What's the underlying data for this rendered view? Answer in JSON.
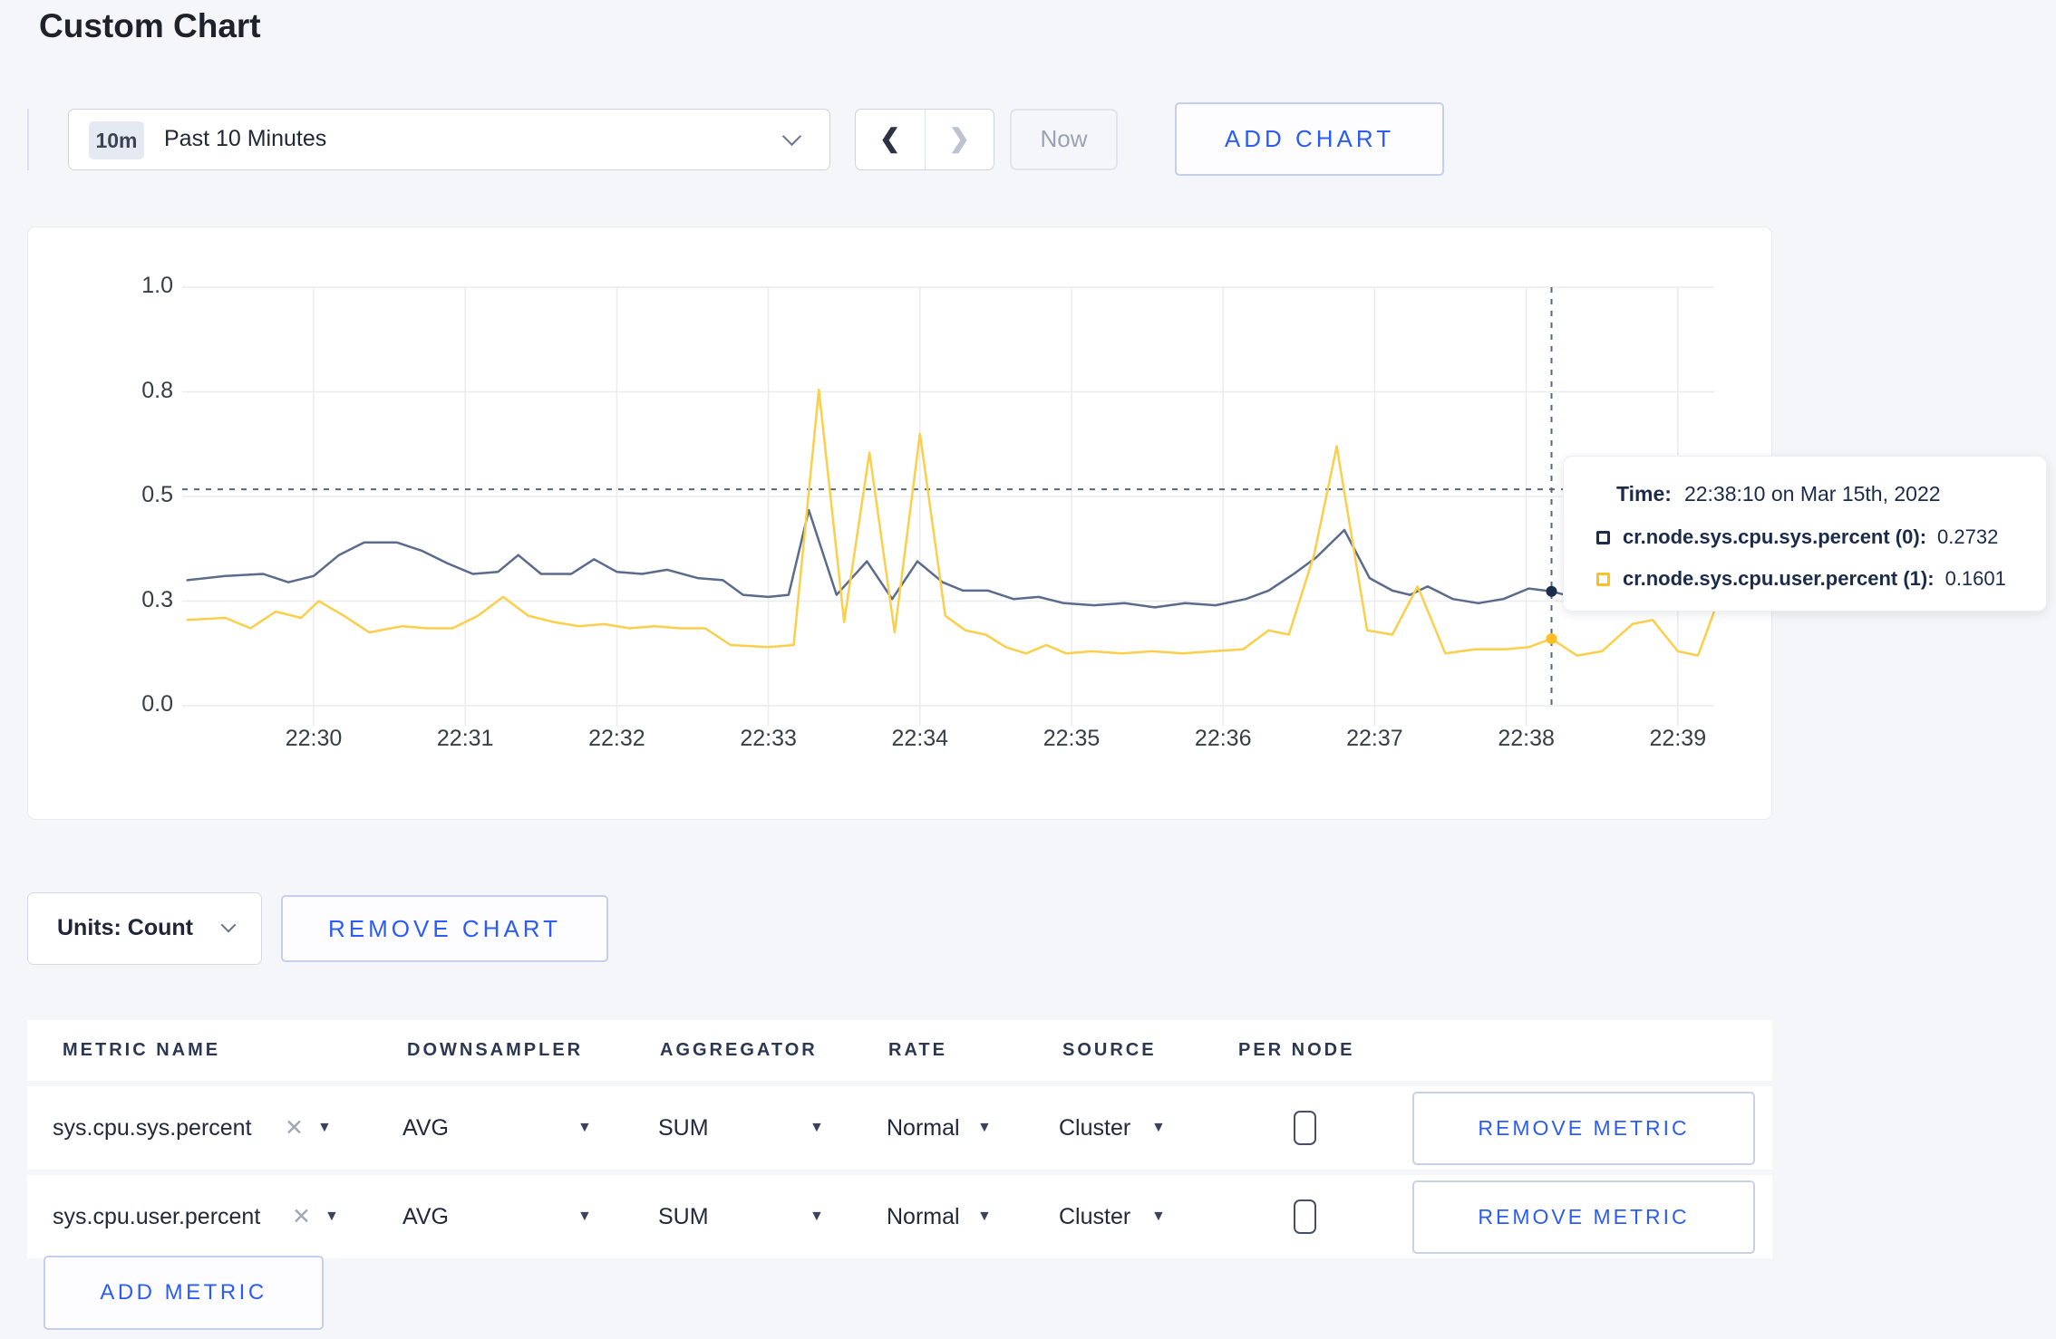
{
  "page": {
    "title": "Custom Chart"
  },
  "toolbar": {
    "time_window_badge": "10m",
    "time_window_label": "Past 10 Minutes",
    "prev_arrow": "❮",
    "next_arrow": "❯",
    "now_label": "Now",
    "add_chart_label": "ADD CHART"
  },
  "chart_controls": {
    "units_label": "Units: Count",
    "remove_chart_label": "REMOVE CHART"
  },
  "chart_data": {
    "type": "line",
    "title": "",
    "xlabel": "",
    "ylabel": "",
    "grid": true,
    "legend_position": "tooltip-only",
    "y_axis": {
      "tick_labels": [
        "0.0",
        "0.3",
        "0.5",
        "0.8",
        "1.0"
      ],
      "tick_values": [
        0,
        0.25,
        0.5,
        0.75,
        1.0
      ],
      "range": [
        0,
        1
      ]
    },
    "x_axis": {
      "tick_labels": [
        "22:30",
        "22:31",
        "22:32",
        "22:33",
        "22:34",
        "22:35",
        "22:36",
        "22:37",
        "22:38",
        "22:39"
      ],
      "tick_seconds": [
        60,
        120,
        180,
        240,
        300,
        360,
        420,
        480,
        540,
        600
      ]
    },
    "series": [
      {
        "name": "cr.node.sys.cpu.sys.percent",
        "color": "#5b6b8c",
        "legend_color": "#1c2c4d",
        "points": [
          [
            10,
            0.3
          ],
          [
            25,
            0.31
          ],
          [
            40,
            0.315
          ],
          [
            50,
            0.295
          ],
          [
            60,
            0.31
          ],
          [
            70,
            0.36
          ],
          [
            80,
            0.39
          ],
          [
            93,
            0.39
          ],
          [
            103,
            0.37
          ],
          [
            113,
            0.34
          ],
          [
            123,
            0.315
          ],
          [
            133,
            0.32
          ],
          [
            141,
            0.36
          ],
          [
            150,
            0.315
          ],
          [
            162,
            0.315
          ],
          [
            171,
            0.35
          ],
          [
            180,
            0.32
          ],
          [
            190,
            0.315
          ],
          [
            200,
            0.325
          ],
          [
            212,
            0.305
          ],
          [
            222,
            0.3
          ],
          [
            230,
            0.265
          ],
          [
            240,
            0.26
          ],
          [
            248,
            0.265
          ],
          [
            256,
            0.4675
          ],
          [
            267,
            0.265
          ],
          [
            279,
            0.345
          ],
          [
            289,
            0.255
          ],
          [
            299,
            0.345
          ],
          [
            309,
            0.295
          ],
          [
            317,
            0.275
          ],
          [
            327,
            0.275
          ],
          [
            337,
            0.255
          ],
          [
            347,
            0.26
          ],
          [
            357,
            0.245
          ],
          [
            369,
            0.24
          ],
          [
            381,
            0.245
          ],
          [
            393,
            0.235
          ],
          [
            405,
            0.245
          ],
          [
            417,
            0.24
          ],
          [
            429,
            0.255
          ],
          [
            438,
            0.275
          ],
          [
            448,
            0.315
          ],
          [
            457,
            0.355
          ],
          [
            468,
            0.42
          ],
          [
            478,
            0.305
          ],
          [
            487,
            0.275
          ],
          [
            494,
            0.265
          ],
          [
            501,
            0.285
          ],
          [
            511,
            0.255
          ],
          [
            521,
            0.245
          ],
          [
            531,
            0.255
          ],
          [
            541,
            0.28
          ],
          [
            550,
            0.2732
          ],
          [
            562,
            0.255
          ],
          [
            574,
            0.265
          ],
          [
            586,
            0.27
          ],
          [
            598,
            0.265
          ],
          [
            608,
            0.27
          ],
          [
            615,
            0.265
          ]
        ]
      },
      {
        "name": "cr.node.sys.cpu.user.percent",
        "color": "#fbcf4a",
        "legend_color": "#fcbf24",
        "points": [
          [
            10,
            0.205
          ],
          [
            25,
            0.21
          ],
          [
            35,
            0.185
          ],
          [
            45,
            0.225
          ],
          [
            55,
            0.21
          ],
          [
            62,
            0.25
          ],
          [
            72,
            0.215
          ],
          [
            82,
            0.175
          ],
          [
            95,
            0.19
          ],
          [
            105,
            0.185
          ],
          [
            115,
            0.185
          ],
          [
            125,
            0.215
          ],
          [
            135,
            0.26
          ],
          [
            145,
            0.215
          ],
          [
            155,
            0.2
          ],
          [
            165,
            0.19
          ],
          [
            175,
            0.195
          ],
          [
            185,
            0.185
          ],
          [
            195,
            0.19
          ],
          [
            205,
            0.185
          ],
          [
            215,
            0.185
          ],
          [
            225,
            0.145
          ],
          [
            240,
            0.14
          ],
          [
            250,
            0.145
          ],
          [
            260,
            0.755
          ],
          [
            270,
            0.2
          ],
          [
            280,
            0.605
          ],
          [
            290,
            0.175
          ],
          [
            300,
            0.65
          ],
          [
            310,
            0.215
          ],
          [
            318,
            0.18
          ],
          [
            326,
            0.17
          ],
          [
            334,
            0.14
          ],
          [
            342,
            0.125
          ],
          [
            350,
            0.145
          ],
          [
            358,
            0.125
          ],
          [
            368,
            0.13
          ],
          [
            380,
            0.125
          ],
          [
            392,
            0.13
          ],
          [
            404,
            0.125
          ],
          [
            416,
            0.13
          ],
          [
            428,
            0.135
          ],
          [
            438,
            0.18
          ],
          [
            446,
            0.17
          ],
          [
            456,
            0.36
          ],
          [
            465,
            0.62
          ],
          [
            477,
            0.18
          ],
          [
            487,
            0.17
          ],
          [
            497,
            0.285
          ],
          [
            508,
            0.125
          ],
          [
            520,
            0.135
          ],
          [
            532,
            0.135
          ],
          [
            541,
            0.14
          ],
          [
            550,
            0.1601
          ],
          [
            560,
            0.12
          ],
          [
            570,
            0.13
          ],
          [
            582,
            0.195
          ],
          [
            590,
            0.205
          ],
          [
            600,
            0.13
          ],
          [
            608,
            0.12
          ],
          [
            615,
            0.235
          ]
        ]
      }
    ],
    "hover": {
      "time_sec": 550,
      "guide_value": 0.517,
      "tooltip": {
        "time_label": "Time:",
        "time_value": "22:38:10 on Mar 15th, 2022",
        "rows": [
          {
            "label": "cr.node.sys.cpu.sys.percent (0):",
            "value": "0.2732",
            "color": "#1c2c4d"
          },
          {
            "label": "cr.node.sys.cpu.user.percent (1):",
            "value": "0.1601",
            "color": "#fcbf24"
          }
        ]
      }
    }
  },
  "metrics_table": {
    "headers": [
      "METRIC NAME",
      "DOWNSAMPLER",
      "AGGREGATOR",
      "RATE",
      "SOURCE",
      "PER NODE"
    ],
    "clear_icon": "✕",
    "caret": "▼",
    "rows": [
      {
        "metric_name": "sys.cpu.sys.percent",
        "downsampler": "AVG",
        "aggregator": "SUM",
        "rate": "Normal",
        "source": "Cluster",
        "per_node_checked": false,
        "remove_label": "REMOVE METRIC"
      },
      {
        "metric_name": "sys.cpu.user.percent",
        "downsampler": "AVG",
        "aggregator": "SUM",
        "rate": "Normal",
        "source": "Cluster",
        "per_node_checked": false,
        "remove_label": "REMOVE METRIC"
      }
    ],
    "add_metric_label": "ADD METRIC"
  }
}
